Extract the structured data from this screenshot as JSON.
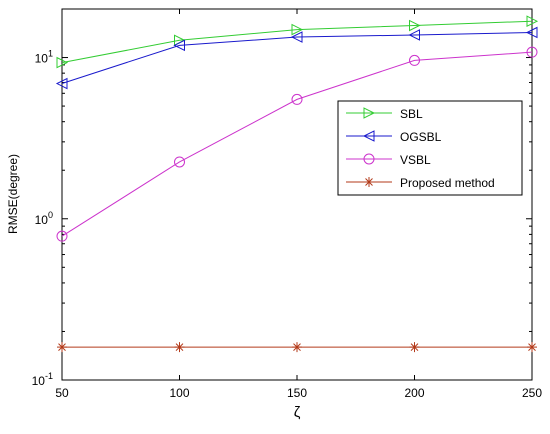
{
  "chart_data": {
    "type": "line",
    "xlabel": "ζ",
    "ylabel": "RMSE(degree)",
    "y_scale": "log",
    "xlim": [
      50,
      250
    ],
    "ylim": [
      0.1,
      20
    ],
    "x": [
      50,
      100,
      150,
      200,
      250
    ],
    "x_tick_labels": [
      "50",
      "100",
      "150",
      "200",
      "250"
    ],
    "y_ticks": [
      {
        "value": 10,
        "base": "10",
        "exp": "1"
      },
      {
        "value": 1,
        "base": "10",
        "exp": "0"
      },
      {
        "value": 0.1,
        "base": "10",
        "exp": "-1"
      }
    ],
    "legend_position": "right",
    "series": [
      {
        "name": "SBL",
        "color": "#33cc33",
        "marker": "triangle-right",
        "values": [
          9.3,
          12.8,
          14.9,
          15.8,
          16.8
        ]
      },
      {
        "name": "OGSBL",
        "color": "#1a1acc",
        "marker": "triangle-left",
        "values": [
          6.9,
          11.9,
          13.4,
          13.8,
          14.3
        ]
      },
      {
        "name": "VSBL",
        "color": "#cc33cc",
        "marker": "circle",
        "values": [
          0.78,
          2.25,
          5.5,
          9.6,
          10.8
        ]
      },
      {
        "name": "Proposed method",
        "color": "#b33a1a",
        "marker": "asterisk",
        "values": [
          0.16,
          0.16,
          0.16,
          0.16,
          0.16
        ]
      }
    ]
  }
}
